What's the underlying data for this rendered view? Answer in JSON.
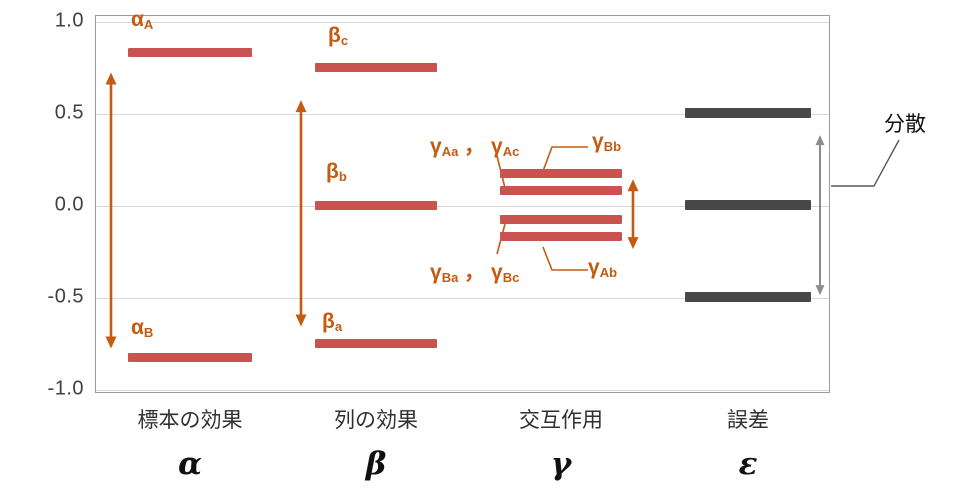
{
  "chart_data": {
    "type": "line-segments",
    "title": "",
    "xlabel": "",
    "ylabel": "",
    "ylim": [
      -1.05,
      1.05
    ],
    "grid": true,
    "yticks": [
      {
        "value": 1.0,
        "label": "1.0"
      },
      {
        "value": 0.5,
        "label": "0.5"
      },
      {
        "value": 0.0,
        "label": "0.0"
      },
      {
        "value": -0.5,
        "label": "-0.5"
      },
      {
        "value": -1.0,
        "label": "-1.0"
      }
    ],
    "groups": [
      {
        "id": "alpha",
        "name": "標本の効果",
        "symbol": "α",
        "bar_color": "#c9544f",
        "bars": [
          {
            "id": "alpha_A",
            "value": 0.83,
            "label_parts": [
              {
                "base": "α",
                "sub": "A"
              }
            ]
          },
          {
            "id": "alpha_B",
            "value": -0.83,
            "label_parts": [
              {
                "base": "α",
                "sub": "B"
              }
            ]
          }
        ]
      },
      {
        "id": "beta",
        "name": "列の効果",
        "symbol": "β",
        "bar_color": "#c9544f",
        "bars": [
          {
            "id": "beta_c",
            "value": 0.75,
            "label_parts": [
              {
                "base": "β",
                "sub": "c"
              }
            ]
          },
          {
            "id": "beta_b",
            "value": 0.0,
            "label_parts": [
              {
                "base": "β",
                "sub": "b"
              }
            ]
          },
          {
            "id": "beta_a",
            "value": -0.75,
            "label_parts": [
              {
                "base": "β",
                "sub": "a"
              }
            ]
          }
        ]
      },
      {
        "id": "gamma",
        "name": "交互作用",
        "symbol": "γ",
        "bar_color": "#c9544f",
        "bars": [
          {
            "id": "gamma_Bb",
            "value": 0.17,
            "label_parts": [
              {
                "base": "γ",
                "sub": "Bb"
              }
            ]
          },
          {
            "id": "gamma_Aa_Ac",
            "value": 0.08,
            "label_parts": [
              {
                "base": "γ",
                "sub": "Aa"
              },
              {
                "sep": " ， "
              },
              {
                "base": "γ",
                "sub": "Ac"
              }
            ]
          },
          {
            "id": "gamma_Ba_Bc",
            "value": -0.08,
            "label_parts": [
              {
                "base": "γ",
                "sub": "Ba"
              },
              {
                "sep": " ， "
              },
              {
                "base": "γ",
                "sub": "Bc"
              }
            ]
          },
          {
            "id": "gamma_Ab",
            "value": -0.17,
            "label_parts": [
              {
                "base": "γ",
                "sub": "Ab"
              }
            ]
          }
        ]
      },
      {
        "id": "epsilon",
        "name": "誤差",
        "symbol": "ε",
        "bar_color": "#474747",
        "bars": [
          {
            "id": "epsilon_high",
            "value": 0.5
          },
          {
            "id": "epsilon_mid",
            "value": 0.0
          },
          {
            "id": "epsilon_low",
            "value": -0.5
          }
        ]
      }
    ],
    "range_arrows": [
      {
        "id": "alpha-range",
        "group": "alpha",
        "from": -0.78,
        "to": 0.72,
        "color": "#c55a11"
      },
      {
        "id": "beta-range",
        "group": "beta",
        "from": -0.66,
        "to": 0.57,
        "color": "#c55a11"
      },
      {
        "id": "gamma-range",
        "group": "gamma",
        "from": -0.24,
        "to": 0.14,
        "color": "#c55a11"
      },
      {
        "id": "epsilon-range",
        "group": "epsilon",
        "from": -0.49,
        "to": 0.38,
        "color": "#8c8c8c"
      }
    ],
    "annotation_label": "分散",
    "colors": {
      "segment_red": "#c9544f",
      "segment_dark": "#474747",
      "accent_orange": "#c55a11",
      "arrow_gray": "#8c8c8c",
      "gridline": "#d9d9d9"
    }
  }
}
